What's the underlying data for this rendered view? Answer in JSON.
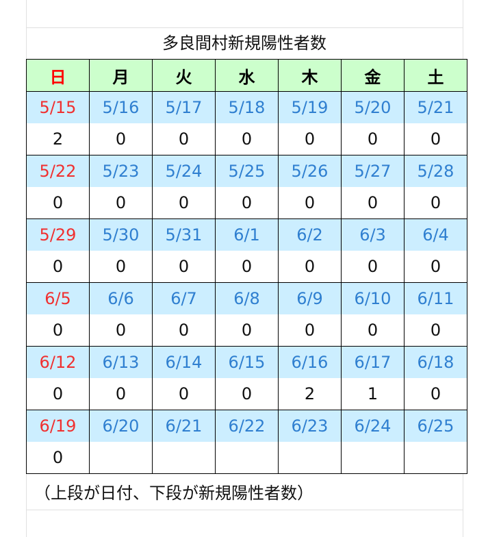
{
  "title": "多良間村新規陽性者数",
  "weekdays": [
    "日",
    "月",
    "火",
    "水",
    "木",
    "金",
    "土"
  ],
  "colors": {
    "header_bg": "#ccffcc",
    "date_bg": "#cceeff",
    "sunday": "#ff0000",
    "date_text": "#2f7fd0"
  },
  "weeks": [
    {
      "dates": [
        "5/15",
        "5/16",
        "5/17",
        "5/18",
        "5/19",
        "5/20",
        "5/21"
      ],
      "values": [
        "2",
        "0",
        "0",
        "0",
        "0",
        "0",
        "0"
      ]
    },
    {
      "dates": [
        "5/22",
        "5/23",
        "5/24",
        "5/25",
        "5/26",
        "5/27",
        "5/28"
      ],
      "values": [
        "0",
        "0",
        "0",
        "0",
        "0",
        "0",
        "0"
      ]
    },
    {
      "dates": [
        "5/29",
        "5/30",
        "5/31",
        "6/1",
        "6/2",
        "6/3",
        "6/4"
      ],
      "values": [
        "0",
        "0",
        "0",
        "0",
        "0",
        "0",
        "0"
      ]
    },
    {
      "dates": [
        "6/5",
        "6/6",
        "6/7",
        "6/8",
        "6/9",
        "6/10",
        "6/11"
      ],
      "values": [
        "0",
        "0",
        "0",
        "0",
        "0",
        "0",
        "0"
      ]
    },
    {
      "dates": [
        "6/12",
        "6/13",
        "6/14",
        "6/15",
        "6/16",
        "6/17",
        "6/18"
      ],
      "values": [
        "0",
        "0",
        "0",
        "0",
        "2",
        "1",
        "0"
      ]
    },
    {
      "dates": [
        "6/19",
        "6/20",
        "6/21",
        "6/22",
        "6/23",
        "6/24",
        "6/25"
      ],
      "values": [
        "0",
        "",
        "",
        "",
        "",
        "",
        ""
      ]
    }
  ],
  "note": "（上段が日付、下段が新規陽性者数）"
}
